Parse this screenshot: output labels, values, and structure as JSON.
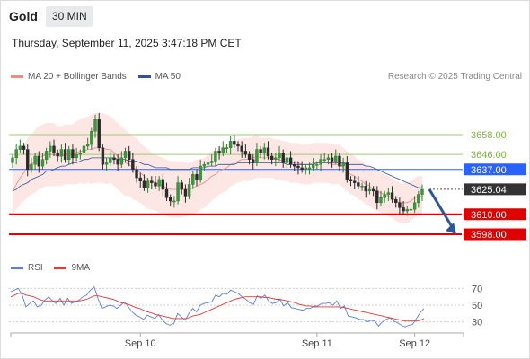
{
  "header": {
    "instrument": "Gold",
    "timeframe": "30 MIN",
    "datetime": "Thursday, September 11, 2025 3:47:18 PM CET"
  },
  "legend": {
    "items": [
      {
        "label": "MA 20 + Bollinger Bands",
        "color": "#f28b82"
      },
      {
        "label": "MA 50",
        "color": "#2f5597"
      }
    ],
    "copyright": "Research © 2025 Trading Central"
  },
  "rsi_legend": {
    "items": [
      {
        "label": "RSI",
        "color": "#5b7fd6"
      },
      {
        "label": "9MA",
        "color": "#e53935"
      }
    ]
  },
  "chart_data": [
    {
      "type": "candlestick",
      "y_range": [
        3585,
        3685
      ],
      "x_tick_labels": [
        "Sep 10",
        "Sep 11",
        "Sep 12"
      ],
      "levels": [
        {
          "value": 3658.0,
          "label": "3658.00",
          "kind": "resistance",
          "color": "#9ccc65",
          "text_color": "#7cb342"
        },
        {
          "value": 3646.0,
          "label": "3646.00",
          "kind": "resistance",
          "color": "#9ccc65",
          "text_color": "#7cb342"
        },
        {
          "value": 3637.0,
          "label": "3637.00",
          "kind": "pivot",
          "color": "#2962ff",
          "text_color": "#ffffff",
          "badge": "#2962ff"
        },
        {
          "value": 3625.04,
          "label": "3625.04",
          "kind": "last_price",
          "color": "#555555",
          "text_color": "#ffffff",
          "badge": "#333333"
        },
        {
          "value": 3610.0,
          "label": "3610.00",
          "kind": "support",
          "color": "#e00000",
          "text_color": "#ffffff",
          "badge": "#e00000"
        },
        {
          "value": 3598.0,
          "label": "3598.00",
          "kind": "support",
          "color": "#e00000",
          "text_color": "#ffffff",
          "badge": "#e00000"
        }
      ],
      "forecast_arrow": {
        "from": 3625,
        "to": 3598,
        "direction": "down",
        "color": "#2b5797"
      },
      "closes": [
        3644,
        3649,
        3651,
        3649,
        3637,
        3640,
        3645,
        3639,
        3643,
        3648,
        3651,
        3647,
        3645,
        3649,
        3643,
        3649,
        3644,
        3646,
        3647,
        3651,
        3652,
        3660,
        3667,
        3650,
        3640,
        3641,
        3644,
        3643,
        3640,
        3644,
        3648,
        3643,
        3637,
        3632,
        3630,
        3626,
        3630,
        3629,
        3627,
        3631,
        3625,
        3620,
        3618,
        3618,
        3629,
        3625,
        3621,
        3628,
        3634,
        3631,
        3639,
        3640,
        3641,
        3642,
        3648,
        3647,
        3650,
        3650,
        3654,
        3652,
        3651,
        3648,
        3646,
        3643,
        3641,
        3649,
        3647,
        3650,
        3645,
        3643,
        3644,
        3647,
        3641,
        3644,
        3640,
        3639,
        3638,
        3637,
        3638,
        3638,
        3640,
        3640,
        3643,
        3643,
        3644,
        3642,
        3645,
        3639,
        3641,
        3631,
        3630,
        3629,
        3627,
        3627,
        3624,
        3625,
        3624,
        3617,
        3620,
        3622,
        3623,
        3619,
        3617,
        3614,
        3612,
        3613,
        3613,
        3617,
        3622,
        3625
      ],
      "ma20": [
        3624,
        3628,
        3632,
        3635,
        3638,
        3640,
        3642,
        3644,
        3645,
        3646,
        3646,
        3646,
        3645,
        3645,
        3646,
        3646,
        3646,
        3647,
        3648,
        3648,
        3649,
        3649,
        3650,
        3650,
        3650,
        3649,
        3649,
        3647,
        3645,
        3643,
        3641,
        3640,
        3638,
        3637,
        3635,
        3633,
        3631,
        3630,
        3629,
        3628,
        3627,
        3626,
        3625,
        3625,
        3625,
        3625,
        3625,
        3625,
        3626,
        3627,
        3628,
        3629,
        3631,
        3633,
        3634,
        3636,
        3637,
        3638,
        3640,
        3641,
        3642,
        3643,
        3643,
        3643,
        3644,
        3645,
        3644,
        3644,
        3644,
        3644,
        3643,
        3643,
        3642,
        3642,
        3641,
        3641,
        3641,
        3640,
        3640,
        3640,
        3641,
        3641,
        3641,
        3641,
        3641,
        3640,
        3640,
        3640,
        3638,
        3636,
        3634,
        3633,
        3631,
        3630,
        3628,
        3627,
        3625,
        3624,
        3623,
        3622,
        3621,
        3620,
        3618,
        3617,
        3617,
        3617,
        3618,
        3620,
        3621,
        3621
      ],
      "ma50": [
        3624,
        3625,
        3627,
        3628,
        3629,
        3631,
        3632,
        3633,
        3634,
        3636,
        3636,
        3637,
        3638,
        3639,
        3639,
        3640,
        3641,
        3641,
        3642,
        3643,
        3643,
        3644,
        3644,
        3644,
        3644,
        3644,
        3644,
        3644,
        3643,
        3643,
        3643,
        3642,
        3642,
        3642,
        3641,
        3640,
        3640,
        3639,
        3638,
        3638,
        3638,
        3638,
        3637,
        3637,
        3637,
        3637,
        3637,
        3637,
        3638,
        3638,
        3638,
        3638,
        3639,
        3639,
        3639,
        3640,
        3640,
        3640,
        3640,
        3640,
        3641,
        3641,
        3641,
        3641,
        3641,
        3641,
        3641,
        3641,
        3641,
        3641,
        3641,
        3641,
        3641,
        3640,
        3640,
        3640,
        3640,
        3640,
        3640,
        3640,
        3640,
        3641,
        3641,
        3641,
        3641,
        3641,
        3641,
        3641,
        3641,
        3640,
        3640,
        3640,
        3640,
        3640,
        3639,
        3639,
        3638,
        3637,
        3636,
        3635,
        3634,
        3633,
        3632,
        3631,
        3630,
        3629,
        3628,
        3627,
        3626,
        3626
      ],
      "bollinger_width": [
        14,
        15,
        16,
        17,
        18,
        18,
        19,
        19,
        19,
        19,
        19,
        19,
        18,
        18,
        18,
        18,
        18,
        19,
        19,
        20,
        20,
        21,
        21,
        21,
        21,
        21,
        20,
        20,
        20,
        20,
        20,
        19,
        19,
        19,
        18,
        18,
        18,
        17,
        17,
        17,
        17,
        17,
        17,
        17,
        17,
        17,
        16,
        16,
        16,
        16,
        15,
        15,
        15,
        15,
        14,
        14,
        14,
        14,
        13,
        13,
        13,
        13,
        13,
        13,
        13,
        13,
        12,
        12,
        12,
        12,
        12,
        12,
        12,
        12,
        12,
        12,
        12,
        12,
        12,
        12,
        12,
        12,
        12,
        12,
        12,
        12,
        12,
        12,
        12,
        12,
        12,
        12,
        12,
        12,
        12,
        12,
        12,
        12,
        12,
        12,
        12,
        12,
        12,
        12,
        12,
        12,
        12,
        12,
        12,
        12
      ]
    },
    {
      "type": "line",
      "name": "RSI",
      "y_ticks": [
        30,
        50,
        70
      ],
      "y_range": [
        20,
        80
      ],
      "series": [
        {
          "name": "RSI",
          "color": "#5b7fd6",
          "values": [
            66,
            68,
            70,
            62,
            48,
            52,
            55,
            48,
            50,
            56,
            60,
            55,
            52,
            58,
            50,
            58,
            52,
            54,
            56,
            60,
            62,
            68,
            72,
            58,
            46,
            48,
            50,
            49,
            46,
            50,
            54,
            48,
            42,
            38,
            36,
            33,
            38,
            36,
            34,
            39,
            32,
            28,
            26,
            28,
            40,
            36,
            32,
            40,
            46,
            42,
            50,
            52,
            53,
            54,
            62,
            60,
            64,
            63,
            68,
            66,
            64,
            60,
            57,
            53,
            51,
            61,
            58,
            62,
            55,
            52,
            53,
            57,
            49,
            53,
            47,
            46,
            45,
            44,
            46,
            46,
            49,
            49,
            52,
            52,
            53,
            50,
            55,
            46,
            49,
            37,
            36,
            35,
            33,
            33,
            30,
            32,
            31,
            25,
            30,
            33,
            35,
            31,
            29,
            26,
            24,
            26,
            27,
            34,
            41,
            46
          ]
        },
        {
          "name": "9MA",
          "color": "#e53935",
          "values": [
            60,
            62,
            64,
            64,
            62,
            61,
            60,
            58,
            56,
            55,
            55,
            55,
            55,
            55,
            55,
            55,
            55,
            55,
            55,
            56,
            57,
            59,
            61,
            61,
            60,
            59,
            58,
            57,
            55,
            53,
            52,
            51,
            49,
            47,
            46,
            44,
            42,
            41,
            39,
            38,
            37,
            36,
            35,
            34,
            34,
            34,
            34,
            35,
            37,
            38,
            39,
            41,
            43,
            45,
            47,
            49,
            51,
            53,
            55,
            57,
            58,
            59,
            60,
            60,
            60,
            60,
            60,
            59,
            59,
            58,
            57,
            57,
            56,
            55,
            54,
            53,
            51,
            50,
            49,
            49,
            48,
            48,
            48,
            48,
            48,
            48,
            48,
            48,
            47,
            46,
            45,
            44,
            43,
            42,
            41,
            40,
            39,
            38,
            37,
            36,
            35,
            34,
            33,
            32,
            31,
            31,
            31,
            31,
            32,
            34
          ]
        }
      ]
    }
  ]
}
